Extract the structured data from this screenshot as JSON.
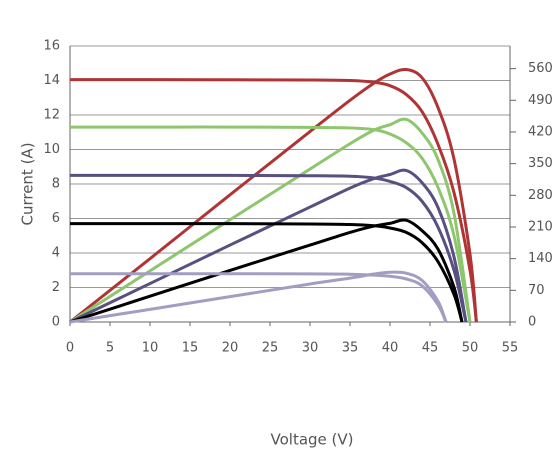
{
  "chart_data": {
    "type": "line",
    "xlabel": "Voltage (V)",
    "ylabel": "Current (A)",
    "xlim": [
      0,
      55
    ],
    "xticks": [
      0,
      5,
      10,
      15,
      20,
      25,
      30,
      35,
      40,
      45,
      50,
      55
    ],
    "ylim": [
      0,
      16
    ],
    "yticks": [
      0,
      2,
      4,
      6,
      8,
      10,
      12,
      14,
      16
    ],
    "y2lim": [
      0,
      610
    ],
    "y2ticks": [
      0,
      70,
      140,
      210,
      280,
      350,
      420,
      490,
      560
    ],
    "grid": true,
    "series": [
      {
        "color": "#b03434",
        "x": [
          0,
          10,
          20,
          30,
          35,
          38,
          40,
          42,
          44,
          46,
          48,
          50,
          50.8
        ],
        "values": [
          14.05,
          14.05,
          14.04,
          14.03,
          14.0,
          13.9,
          13.7,
          13.2,
          12.2,
          10.3,
          7.5,
          3.0,
          0
        ]
      },
      {
        "color": "#b03434",
        "axis": "y2",
        "x": [
          0,
          10,
          20,
          30,
          35,
          38,
          40,
          42,
          44,
          46,
          48,
          50,
          50.8
        ],
        "values": [
          0,
          140,
          281,
          421,
          490,
          528,
          548,
          558,
          540,
          474,
          360,
          150,
          0
        ]
      },
      {
        "color": "#8dc66c",
        "x": [
          0,
          10,
          20,
          30,
          35,
          38,
          40,
          42,
          44,
          46,
          48,
          50
        ],
        "values": [
          11.3,
          11.3,
          11.3,
          11.28,
          11.25,
          11.15,
          10.9,
          10.4,
          9.5,
          7.8,
          5.0,
          0
        ]
      },
      {
        "color": "#8dc66c",
        "axis": "y2",
        "x": [
          0,
          10,
          20,
          30,
          35,
          38,
          40,
          42,
          44,
          46,
          48,
          50
        ],
        "values": [
          0,
          113,
          226,
          338,
          394,
          424,
          436,
          448,
          418,
          359,
          240,
          0
        ]
      },
      {
        "color": "#575080",
        "x": [
          0,
          10,
          20,
          30,
          35,
          38,
          40,
          42,
          44,
          46,
          48,
          49.5
        ],
        "values": [
          8.5,
          8.5,
          8.5,
          8.48,
          8.45,
          8.35,
          8.15,
          7.8,
          7.0,
          5.5,
          3.0,
          0
        ]
      },
      {
        "color": "#575080",
        "axis": "y2",
        "x": [
          0,
          10,
          20,
          30,
          35,
          38,
          40,
          42,
          44,
          46,
          48,
          49.5
        ],
        "values": [
          0,
          85,
          170,
          254,
          296,
          317,
          326,
          335,
          308,
          253,
          144,
          0
        ]
      },
      {
        "color": "#000000",
        "x": [
          0,
          10,
          20,
          30,
          35,
          38,
          40,
          42,
          44,
          46,
          48,
          49
        ],
        "values": [
          5.7,
          5.7,
          5.7,
          5.68,
          5.65,
          5.58,
          5.45,
          5.2,
          4.6,
          3.5,
          1.6,
          0
        ]
      },
      {
        "color": "#000000",
        "axis": "y2",
        "x": [
          0,
          10,
          20,
          30,
          35,
          38,
          40,
          42,
          44,
          46,
          48,
          49
        ],
        "values": [
          0,
          57,
          114,
          170,
          198,
          212,
          218,
          225,
          202,
          161,
          77,
          0
        ]
      },
      {
        "color": "#a29ec2",
        "x": [
          0,
          10,
          20,
          30,
          35,
          38,
          40,
          42,
          44,
          46,
          47
        ],
        "values": [
          2.8,
          2.8,
          2.8,
          2.79,
          2.77,
          2.72,
          2.65,
          2.5,
          2.1,
          1.0,
          0
        ]
      },
      {
        "color": "#a29ec2",
        "axis": "y2",
        "x": [
          0,
          10,
          20,
          30,
          35,
          38,
          40,
          42,
          44,
          46,
          47
        ],
        "values": [
          0,
          28,
          56,
          84,
          97,
          106,
          110,
          108,
          92,
          46,
          0
        ]
      }
    ]
  }
}
